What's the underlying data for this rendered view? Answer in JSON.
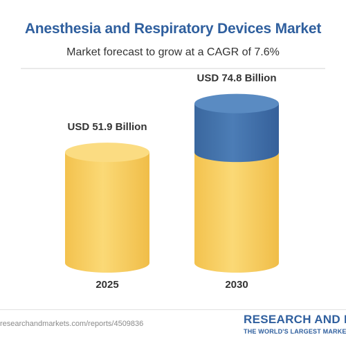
{
  "header": {
    "title": "Anesthesia and Respiratory Devices Market",
    "subtitle": "Market forecast to grow at a CAGR of 7.6%"
  },
  "chart_data": {
    "type": "bar",
    "style": "stacked-cylinder",
    "categories": [
      "2025",
      "2030"
    ],
    "series": [
      {
        "values": [
          51.9,
          51.9
        ],
        "color": "#f8d26a"
      },
      {
        "values": [
          0,
          22.9
        ],
        "color": "#3f6fa8"
      }
    ],
    "totals": [
      51.9,
      74.8
    ],
    "data_labels": [
      "USD 51.9 Billion",
      "USD 74.8 Billion"
    ],
    "title": "Anesthesia and Respiratory Devices Market",
    "subtitle": "Market forecast to grow at a CAGR of 7.6%",
    "ylim": [
      0,
      80
    ],
    "grid": false
  },
  "footer": {
    "url": "researchandmarkets.com/reports/4509836",
    "brand": "RESEARCH AND MARKETS",
    "tagline": "THE WORLD'S LARGEST MARKET RESEARCH STORE"
  },
  "colors": {
    "title": "#2f5f9e",
    "base": "#f8d26a",
    "growth": "#3f6fa8"
  }
}
